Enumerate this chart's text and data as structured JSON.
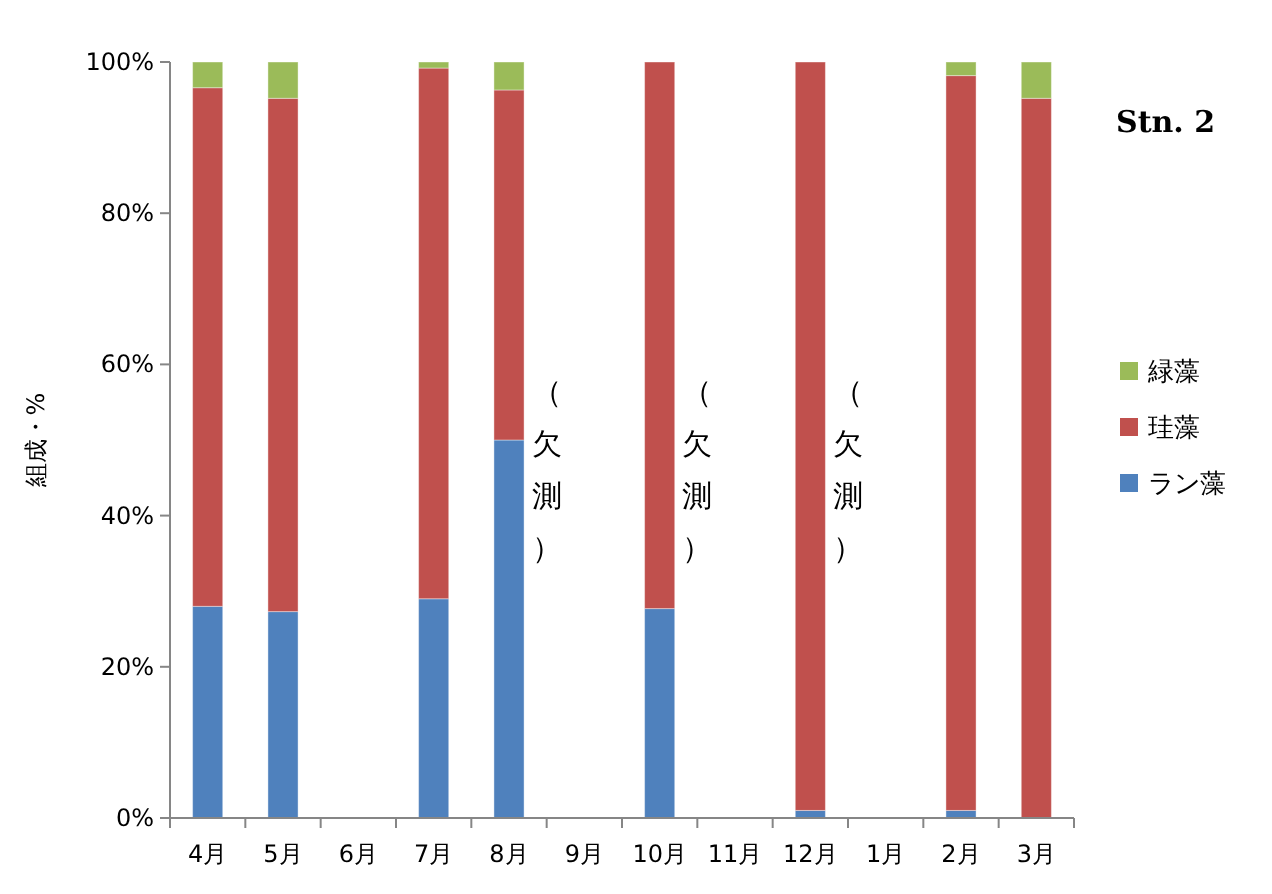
{
  "chart_data": {
    "type": "bar",
    "stacked": true,
    "ylabel": "組成・%",
    "categories": [
      "4月",
      "5月",
      "6月",
      "7月",
      "8月",
      "9月",
      "10月",
      "11月",
      "12月",
      "1月",
      "2月",
      "3月"
    ],
    "series": [
      {
        "name": "ラン藻",
        "color": "#4f81bd",
        "values": [
          28,
          27.3,
          null,
          29,
          50,
          null,
          27.7,
          null,
          1,
          null,
          1,
          0
        ]
      },
      {
        "name": "珪藻",
        "color": "#c0504d",
        "values": [
          68.6,
          67.9,
          null,
          70.2,
          46.3,
          null,
          72.3,
          null,
          99,
          null,
          97.2,
          95.2
        ]
      },
      {
        "name": "緑藻",
        "color": "#9bbb59",
        "values": [
          3.4,
          4.8,
          null,
          0.8,
          3.7,
          null,
          0,
          null,
          0,
          null,
          1.8,
          4.8
        ]
      }
    ],
    "ylim": [
      0,
      100
    ],
    "yticks": [
      {
        "value": 0,
        "label": "0%"
      },
      {
        "value": 20,
        "label": "20%"
      },
      {
        "value": 40,
        "label": "40%"
      },
      {
        "value": 60,
        "label": "60%"
      },
      {
        "value": 80,
        "label": "80%"
      },
      {
        "value": 100,
        "label": "100%"
      }
    ],
    "grid": false,
    "legend": "right",
    "annotations": [
      "（欠測）",
      "（欠測）",
      "（欠測）",
      "Stn. 2"
    ]
  }
}
